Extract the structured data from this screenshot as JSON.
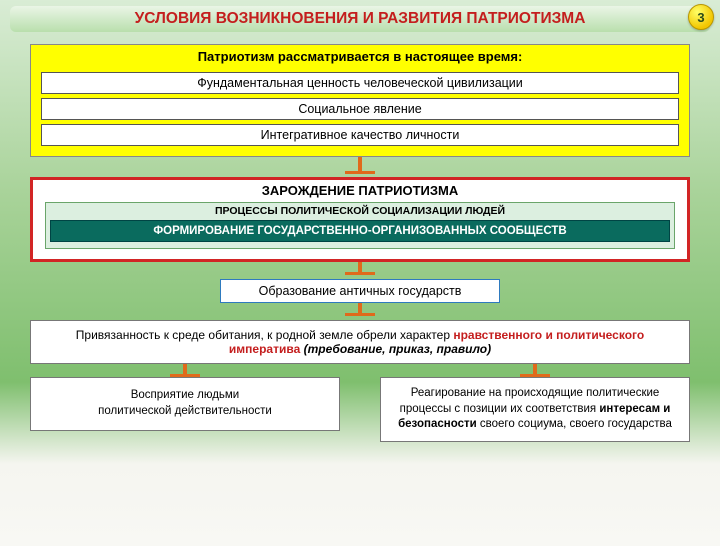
{
  "page": {
    "title": "УСЛОВИЯ ВОЗНИКНОВЕНИЯ И РАЗВИТИЯ ПАТРИОТИЗМА",
    "number": "3"
  },
  "colors": {
    "title_text": "#c41e1e",
    "yellow_bg": "#ffff00",
    "red_border": "#d22525",
    "teal_bg": "#0a6b5e",
    "connector": "#e06a1b",
    "blue_border": "#2e7abf"
  },
  "current_views": {
    "header": "Патриотизм рассматривается в настоящее время:",
    "items": [
      "Фундаментальная ценность человеческой цивилизации",
      "Социальное явление",
      "Интегративное качество личности"
    ]
  },
  "origin": {
    "title": "ЗАРОЖДЕНИЕ ПАТРИОТИЗМА",
    "processes_label": "ПРОЦЕССЫ ПОЛИТИЧЕСКОЙ СОЦИАЛИЗАЦИИ ЛЮДЕЙ",
    "formation": "ФОРМИРОВАНИЕ ГОСУДАРСТВЕННО-ОРГАНИЗОВАННЫХ СООБЩЕСТВ"
  },
  "ancient": "Образование античных  государств",
  "imperative": {
    "pre": "Привязанность к среде обитания, к родной земле обрели характер ",
    "accent": "нравственного и политического императива",
    "tail": " (требование, приказ, правило)"
  },
  "bottom": {
    "left": "Восприятие людьми\nполитической действительности",
    "right_pre": "Реагирование на происходящие политические процессы с позиции их соответствия ",
    "right_b1": "интересам и безопасности",
    "right_post": " своего социума, своего государства"
  }
}
